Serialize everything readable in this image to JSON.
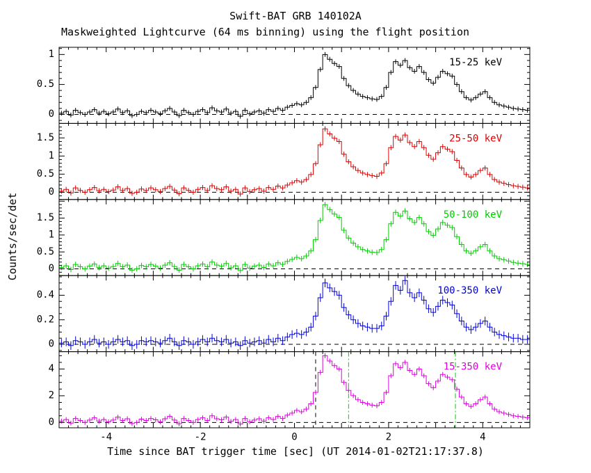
{
  "header": {
    "title": "Swift-BAT GRB 140102A",
    "subtitle": "Maskweighted Lightcurve (64 ms binning) using the flight position"
  },
  "axes": {
    "ylabel": "Counts/sec/det",
    "xlabel": "Time since BAT trigger time [sec] (UT 2014-01-02T21:17:37.8)",
    "xlim": [
      -5,
      5
    ],
    "xticks_labeled": [
      -4,
      -2,
      0,
      2,
      4
    ],
    "xtick_major_step": 1,
    "xtick_minor_step": 0.2,
    "axis_color": "#000000",
    "background": "#ffffff"
  },
  "chart_data": {
    "type": "line",
    "binning": "64 ms",
    "t_start": -5.0,
    "t_step": 0.1,
    "zero_line": {
      "color": "#000000",
      "style": "dashed"
    },
    "markers": [
      {
        "t": 0.45,
        "color": "#000000",
        "style": "dashed",
        "panel": 4
      },
      {
        "t": 1.15,
        "color": "#00cc00",
        "style": "dashdot",
        "panel": 4
      },
      {
        "t": 3.42,
        "color": "#00cc00",
        "style": "dashdot",
        "panel": 4
      }
    ],
    "series": [
      {
        "name": "15-25 keV",
        "color": "#000000",
        "ylim": [
          -0.15,
          1.12
        ],
        "yticks": [
          0,
          0.5,
          1
        ],
        "ytick_minor": 0.1,
        "error": 0.04,
        "values": [
          0.02,
          0.05,
          -0.01,
          0.07,
          0.03,
          0.0,
          0.04,
          0.08,
          0.02,
          0.05,
          0.01,
          0.04,
          0.09,
          0.03,
          0.06,
          -0.02,
          0.0,
          0.05,
          0.03,
          0.07,
          0.04,
          0.01,
          0.06,
          0.1,
          0.04,
          -0.02,
          0.07,
          0.03,
          0.0,
          0.05,
          0.08,
          0.03,
          0.11,
          0.06,
          0.04,
          0.09,
          0.02,
          0.05,
          -0.03,
          0.07,
          0.01,
          0.04,
          0.06,
          0.02,
          0.08,
          0.05,
          0.1,
          0.07,
          0.12,
          0.15,
          0.18,
          0.16,
          0.2,
          0.28,
          0.45,
          0.75,
          1.0,
          0.92,
          0.85,
          0.8,
          0.6,
          0.48,
          0.4,
          0.34,
          0.3,
          0.28,
          0.26,
          0.25,
          0.3,
          0.45,
          0.7,
          0.88,
          0.82,
          0.9,
          0.78,
          0.72,
          0.8,
          0.7,
          0.58,
          0.52,
          0.62,
          0.72,
          0.68,
          0.64,
          0.5,
          0.38,
          0.28,
          0.24,
          0.28,
          0.34,
          0.38,
          0.28,
          0.2,
          0.16,
          0.14,
          0.12,
          0.1,
          0.09,
          0.08,
          0.07,
          0.06
        ]
      },
      {
        "name": "25-50 keV",
        "color": "#dd0000",
        "ylim": [
          -0.2,
          1.9
        ],
        "yticks": [
          0,
          0.5,
          1,
          1.5
        ],
        "ytick_minor": 0.1,
        "error": 0.07,
        "values": [
          0.03,
          0.08,
          -0.02,
          0.12,
          0.05,
          0.0,
          0.07,
          0.13,
          0.04,
          0.08,
          0.02,
          0.06,
          0.15,
          0.05,
          0.1,
          -0.03,
          0.0,
          0.09,
          0.05,
          0.12,
          0.07,
          0.02,
          0.1,
          0.16,
          0.06,
          -0.04,
          0.12,
          0.05,
          0.0,
          0.08,
          0.13,
          0.05,
          0.18,
          0.1,
          0.07,
          0.15,
          0.03,
          0.08,
          -0.05,
          0.12,
          0.02,
          0.07,
          0.1,
          0.03,
          0.13,
          0.08,
          0.17,
          0.12,
          0.2,
          0.26,
          0.32,
          0.28,
          0.35,
          0.49,
          0.79,
          1.31,
          1.75,
          1.61,
          1.49,
          1.4,
          1.05,
          0.84,
          0.7,
          0.6,
          0.53,
          0.49,
          0.46,
          0.44,
          0.53,
          0.79,
          1.23,
          1.54,
          1.44,
          1.58,
          1.37,
          1.26,
          1.4,
          1.23,
          1.02,
          0.91,
          1.09,
          1.26,
          1.19,
          1.12,
          0.88,
          0.67,
          0.49,
          0.42,
          0.49,
          0.6,
          0.67,
          0.49,
          0.35,
          0.28,
          0.25,
          0.21,
          0.18,
          0.16,
          0.14,
          0.12,
          0.11
        ]
      },
      {
        "name": "50-100 keV",
        "color": "#00cc00",
        "ylim": [
          -0.2,
          2.05
        ],
        "yticks": [
          0,
          0.5,
          1,
          1.5
        ],
        "ytick_minor": 0.1,
        "error": 0.08,
        "values": [
          0.04,
          0.09,
          -0.02,
          0.13,
          0.06,
          0.0,
          0.08,
          0.14,
          0.04,
          0.09,
          0.02,
          0.07,
          0.16,
          0.06,
          0.11,
          -0.04,
          0.0,
          0.1,
          0.06,
          0.13,
          0.08,
          0.02,
          0.11,
          0.18,
          0.07,
          -0.04,
          0.13,
          0.06,
          0.0,
          0.09,
          0.14,
          0.06,
          0.2,
          0.11,
          0.08,
          0.16,
          0.03,
          0.09,
          -0.05,
          0.13,
          0.02,
          0.08,
          0.11,
          0.04,
          0.14,
          0.09,
          0.18,
          0.13,
          0.22,
          0.28,
          0.34,
          0.3,
          0.38,
          0.53,
          0.86,
          1.43,
          1.9,
          1.75,
          1.62,
          1.52,
          1.14,
          0.91,
          0.76,
          0.65,
          0.57,
          0.53,
          0.49,
          0.48,
          0.57,
          0.86,
          1.33,
          1.67,
          1.56,
          1.71,
          1.48,
          1.37,
          1.52,
          1.33,
          1.1,
          0.99,
          1.18,
          1.37,
          1.29,
          1.22,
          0.95,
          0.72,
          0.53,
          0.46,
          0.53,
          0.65,
          0.72,
          0.53,
          0.38,
          0.3,
          0.27,
          0.23,
          0.19,
          0.17,
          0.15,
          0.13,
          0.11
        ]
      },
      {
        "name": "100-350 keV",
        "color": "#0000dd",
        "ylim": [
          -0.06,
          0.56
        ],
        "yticks": [
          0,
          0.2,
          0.4
        ],
        "ytick_minor": 0.05,
        "error": 0.035,
        "values": [
          0.01,
          0.02,
          -0.01,
          0.03,
          0.02,
          0.0,
          0.02,
          0.04,
          0.01,
          0.02,
          0.0,
          0.02,
          0.04,
          0.02,
          0.03,
          -0.01,
          0.0,
          0.03,
          0.02,
          0.03,
          0.02,
          0.01,
          0.03,
          0.05,
          0.02,
          -0.01,
          0.03,
          0.02,
          0.0,
          0.02,
          0.04,
          0.02,
          0.05,
          0.03,
          0.02,
          0.04,
          0.01,
          0.02,
          -0.01,
          0.03,
          0.01,
          0.02,
          0.03,
          0.01,
          0.04,
          0.02,
          0.05,
          0.03,
          0.06,
          0.08,
          0.09,
          0.08,
          0.1,
          0.14,
          0.23,
          0.38,
          0.5,
          0.46,
          0.43,
          0.4,
          0.3,
          0.24,
          0.2,
          0.17,
          0.15,
          0.14,
          0.13,
          0.13,
          0.15,
          0.23,
          0.35,
          0.48,
          0.44,
          0.52,
          0.42,
          0.38,
          0.42,
          0.36,
          0.29,
          0.26,
          0.31,
          0.36,
          0.34,
          0.32,
          0.25,
          0.19,
          0.14,
          0.12,
          0.14,
          0.17,
          0.19,
          0.14,
          0.1,
          0.08,
          0.07,
          0.06,
          0.05,
          0.05,
          0.04,
          0.04,
          0.03
        ]
      },
      {
        "name": "15-350 keV",
        "color": "#dd00dd",
        "ylim": [
          -0.4,
          5.3
        ],
        "yticks": [
          0,
          2,
          4
        ],
        "ytick_minor": 0.5,
        "error": 0.18,
        "values": [
          0.1,
          0.22,
          -0.05,
          0.3,
          0.15,
          0.0,
          0.18,
          0.35,
          0.1,
          0.22,
          0.05,
          0.18,
          0.4,
          0.15,
          0.28,
          -0.08,
          0.0,
          0.25,
          0.15,
          0.3,
          0.2,
          0.05,
          0.28,
          0.45,
          0.18,
          -0.1,
          0.3,
          0.15,
          0.0,
          0.22,
          0.35,
          0.15,
          0.5,
          0.28,
          0.2,
          0.4,
          0.08,
          0.22,
          -0.12,
          0.3,
          0.05,
          0.18,
          0.28,
          0.1,
          0.35,
          0.22,
          0.45,
          0.3,
          0.55,
          0.7,
          0.9,
          0.8,
          1.0,
          1.4,
          2.25,
          3.75,
          5.0,
          4.6,
          4.25,
          4.0,
          3.0,
          2.4,
          2.0,
          1.7,
          1.5,
          1.4,
          1.3,
          1.25,
          1.5,
          2.25,
          3.5,
          4.4,
          4.1,
          4.5,
          3.9,
          3.6,
          4.0,
          3.5,
          2.9,
          2.6,
          3.1,
          3.6,
          3.4,
          3.2,
          2.5,
          1.9,
          1.4,
          1.2,
          1.4,
          1.7,
          1.9,
          1.4,
          1.0,
          0.8,
          0.7,
          0.6,
          0.5,
          0.45,
          0.4,
          0.35,
          0.3
        ]
      }
    ]
  }
}
